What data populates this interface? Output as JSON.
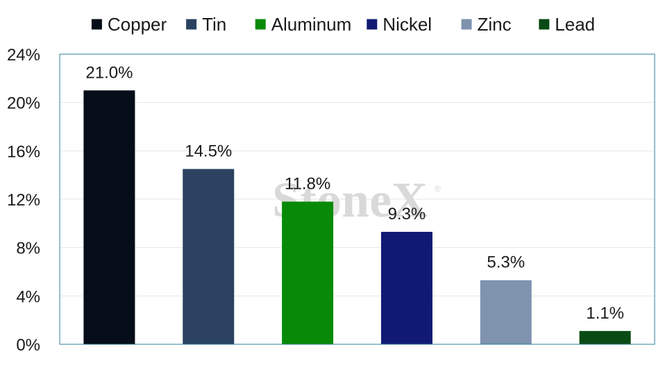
{
  "chart_data": {
    "type": "bar",
    "title": "",
    "xlabel": "",
    "ylabel": "",
    "ylim": [
      0,
      24
    ],
    "yticks": [
      0,
      4,
      8,
      12,
      16,
      20,
      24
    ],
    "ytick_suffix": "%",
    "grid": true,
    "legend_position": "top",
    "categories": [
      "Copper",
      "Tin",
      "Aluminum",
      "Nickel",
      "Zinc",
      "Lead"
    ],
    "values": [
      21.0,
      14.5,
      11.8,
      9.3,
      5.3,
      1.1
    ],
    "data_labels": [
      "21.0%",
      "14.5%",
      "11.8%",
      "9.3%",
      "5.3%",
      "1.1%"
    ],
    "colors": [
      "#050d18",
      "#2b4361",
      "#088a08",
      "#111a73",
      "#7f93ae",
      "#0a4a14"
    ]
  },
  "watermark": "StoneX",
  "watermark_mark": "®",
  "style": {
    "frame_color": "#2e7f98",
    "grid_color": "#e6e6e6"
  }
}
